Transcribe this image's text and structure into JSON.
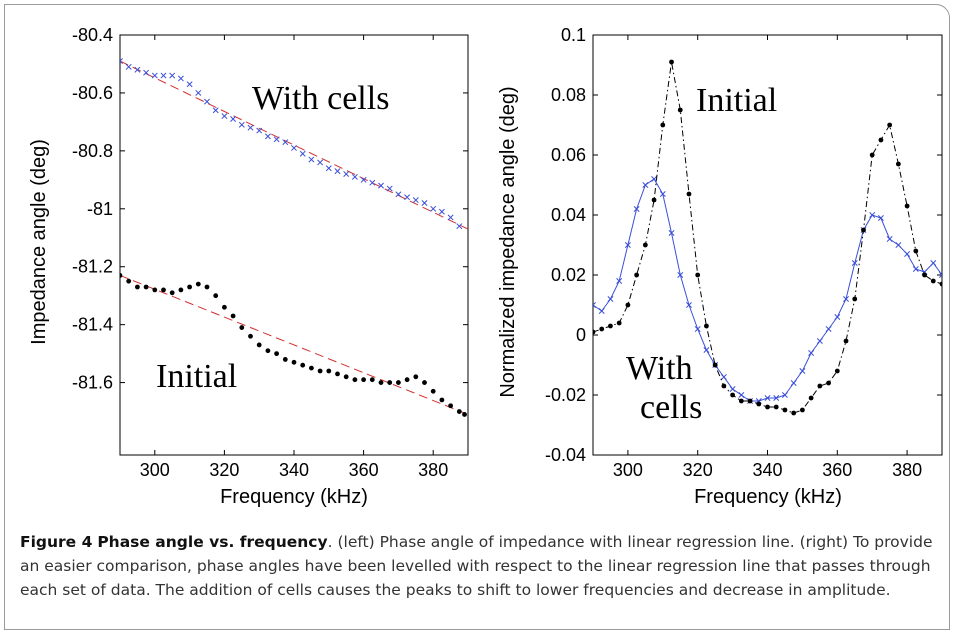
{
  "chart_data": [
    {
      "type": "scatter",
      "xlabel": "Frequency (kHz)",
      "ylabel": "Impedance angle (deg)",
      "xlim": [
        290,
        390
      ],
      "ylim": [
        -81.85,
        -80.4
      ],
      "xticks": [
        "300",
        "320",
        "340",
        "360",
        "380"
      ],
      "yticks": [
        "-80.4",
        "-80.6",
        "-80.8",
        "-81",
        "-81.2",
        "-81.4",
        "-81.6"
      ],
      "grid": false,
      "annotations": [
        {
          "text": "With cells",
          "x": 322,
          "y": -80.62
        },
        {
          "text": "Initial",
          "x": 297,
          "y": -81.58
        }
      ],
      "series": [
        {
          "marker": "x",
          "color": "#3b4fd8",
          "x": [
            290,
            292.5,
            295,
            297.5,
            300,
            302.5,
            305,
            307.5,
            310,
            312.5,
            315,
            317.5,
            320,
            322.5,
            325,
            327.5,
            330,
            332.5,
            335,
            337.5,
            340,
            342.5,
            345,
            347.5,
            350,
            352.5,
            355,
            357.5,
            360,
            362.5,
            365,
            367.5,
            370,
            372.5,
            375,
            377.5,
            380,
            382.5,
            385,
            387.5
          ],
          "y": [
            -80.49,
            -80.51,
            -80.52,
            -80.53,
            -80.54,
            -80.54,
            -80.54,
            -80.55,
            -80.57,
            -80.6,
            -80.63,
            -80.66,
            -80.68,
            -80.69,
            -80.71,
            -80.72,
            -80.73,
            -80.75,
            -80.76,
            -80.77,
            -80.79,
            -80.81,
            -80.83,
            -80.84,
            -80.86,
            -80.87,
            -80.88,
            -80.89,
            -80.9,
            -80.91,
            -80.92,
            -80.93,
            -80.95,
            -80.96,
            -80.97,
            -80.98,
            -81.0,
            -81.01,
            -81.03,
            -81.06
          ]
        },
        {
          "marker": "dot",
          "color": "#000000",
          "x": [
            290,
            292.5,
            295,
            297.5,
            300,
            302.5,
            305,
            307.5,
            310,
            312.5,
            315,
            317.5,
            320,
            322.5,
            325,
            327.5,
            330,
            332.5,
            335,
            337.5,
            340,
            342.5,
            345,
            347.5,
            350,
            352.5,
            355,
            357.5,
            360,
            362.5,
            365,
            367.5,
            370,
            372.5,
            375,
            377.5,
            380,
            382.5,
            385,
            387.5,
            389
          ],
          "y": [
            -81.23,
            -81.25,
            -81.27,
            -81.27,
            -81.28,
            -81.28,
            -81.29,
            -81.28,
            -81.27,
            -81.26,
            -81.27,
            -81.3,
            -81.34,
            -81.37,
            -81.41,
            -81.44,
            -81.47,
            -81.49,
            -81.5,
            -81.52,
            -81.53,
            -81.54,
            -81.55,
            -81.56,
            -81.56,
            -81.57,
            -81.58,
            -81.59,
            -81.59,
            -81.59,
            -81.6,
            -81.6,
            -81.6,
            -81.59,
            -81.58,
            -81.6,
            -81.63,
            -81.66,
            -81.68,
            -81.7,
            -81.71
          ]
        }
      ],
      "regression_lines": [
        {
          "color": "#d23030",
          "x": [
            290,
            390
          ],
          "y": [
            -80.49,
            -81.07
          ]
        },
        {
          "color": "#d23030",
          "x": [
            290,
            390
          ],
          "y": [
            -81.23,
            -81.71
          ]
        }
      ]
    },
    {
      "type": "line",
      "xlabel": "Frequency (kHz)",
      "ylabel": "Normalized impedance angle (deg)",
      "xlim": [
        290,
        390
      ],
      "ylim": [
        -0.04,
        0.1
      ],
      "xticks": [
        "300",
        "320",
        "340",
        "360",
        "380"
      ],
      "yticks": [
        "0.1",
        "0.08",
        "0.06",
        "0.04",
        "0.02",
        "0",
        "-0.02",
        "-0.04"
      ],
      "grid": false,
      "annotations": [
        {
          "text": "Initial",
          "x": 318,
          "y": 0.075
        },
        {
          "text": "With",
          "x": 311,
          "y": -0.013
        },
        {
          "text": "cells",
          "x": 313,
          "y": -0.028
        }
      ],
      "series": [
        {
          "marker": "x",
          "line": "solid",
          "color": "#3b4fd8",
          "x": [
            290,
            292.5,
            295,
            297.5,
            300,
            302.5,
            305,
            307.5,
            310,
            312.5,
            315,
            317.5,
            320,
            322.5,
            325,
            327.5,
            330,
            332.5,
            335,
            337.5,
            340,
            342.5,
            345,
            347.5,
            350,
            352.5,
            355,
            357.5,
            360,
            362.5,
            365,
            367.5,
            370,
            372.5,
            375,
            377.5,
            380,
            382.5,
            385,
            387.5,
            390
          ],
          "y": [
            0.01,
            0.008,
            0.012,
            0.018,
            0.03,
            0.042,
            0.05,
            0.052,
            0.047,
            0.034,
            0.02,
            0.01,
            0.002,
            -0.005,
            -0.01,
            -0.014,
            -0.018,
            -0.02,
            -0.022,
            -0.022,
            -0.021,
            -0.021,
            -0.02,
            -0.016,
            -0.012,
            -0.006,
            -0.002,
            0.002,
            0.006,
            0.012,
            0.024,
            0.035,
            0.04,
            0.039,
            0.032,
            0.03,
            0.027,
            0.022,
            0.021,
            0.024,
            0.02
          ]
        },
        {
          "marker": "dot",
          "line": "dashdot",
          "color": "#000000",
          "x": [
            290,
            292.5,
            295,
            297.5,
            300,
            302.5,
            305,
            307.5,
            310,
            312.5,
            315,
            317.5,
            320,
            322.5,
            325,
            327.5,
            330,
            332.5,
            335,
            337.5,
            340,
            342.5,
            345,
            347.5,
            350,
            352.5,
            355,
            357.5,
            360,
            362.5,
            365,
            367.5,
            370,
            372.5,
            375,
            377.5,
            380,
            382.5,
            385,
            387.5,
            390
          ],
          "y": [
            0.001,
            0.002,
            0.003,
            0.004,
            0.01,
            0.02,
            0.03,
            0.045,
            0.07,
            0.091,
            0.075,
            0.047,
            0.02,
            0.003,
            -0.01,
            -0.017,
            -0.02,
            -0.022,
            -0.022,
            -0.023,
            -0.024,
            -0.024,
            -0.025,
            -0.026,
            -0.025,
            -0.021,
            -0.017,
            -0.016,
            -0.012,
            -0.002,
            0.012,
            0.035,
            0.06,
            0.065,
            0.07,
            0.057,
            0.043,
            0.028,
            0.02,
            0.018,
            0.017
          ]
        }
      ]
    }
  ],
  "caption": {
    "label": "Figure 4",
    "title": "Phase angle vs. frequency",
    "text": ". (left) Phase angle of impedance with linear regression line. (right) To provide an easier comparison, phase angles have been levelled with respect to the linear regression line that passes through each set of data. The addition of cells causes the peaks to shift to lower frequencies and decrease in amplitude."
  }
}
